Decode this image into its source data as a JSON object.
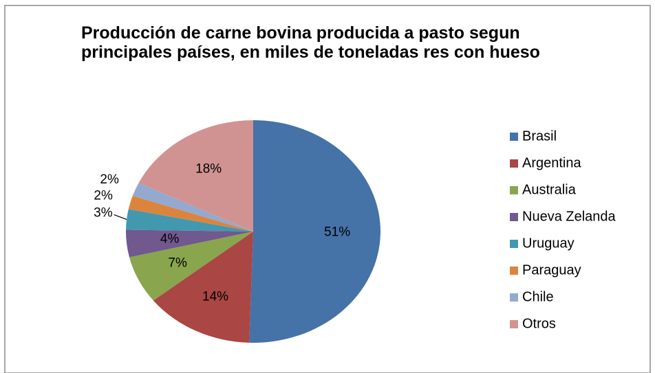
{
  "chart_data": {
    "type": "pie",
    "title": "Producción de carne bovina producida a pasto segun principales países, en miles de toneladas res con hueso",
    "categories": [
      "Brasil",
      "Argentina",
      "Australia",
      "Nueva Zelanda",
      "Uruguay",
      "Paraguay",
      "Chile",
      "Otros"
    ],
    "values": [
      51,
      14,
      7,
      4,
      3,
      2,
      2,
      18
    ],
    "value_labels": [
      "51%",
      "14%",
      "7%",
      "4%",
      "3%",
      "2%",
      "2%",
      "18%"
    ],
    "colors": [
      "#4572a7",
      "#aa4643",
      "#89a54e",
      "#71588f",
      "#4198af",
      "#db843d",
      "#93a9cf",
      "#d19392"
    ],
    "legend": "right"
  }
}
